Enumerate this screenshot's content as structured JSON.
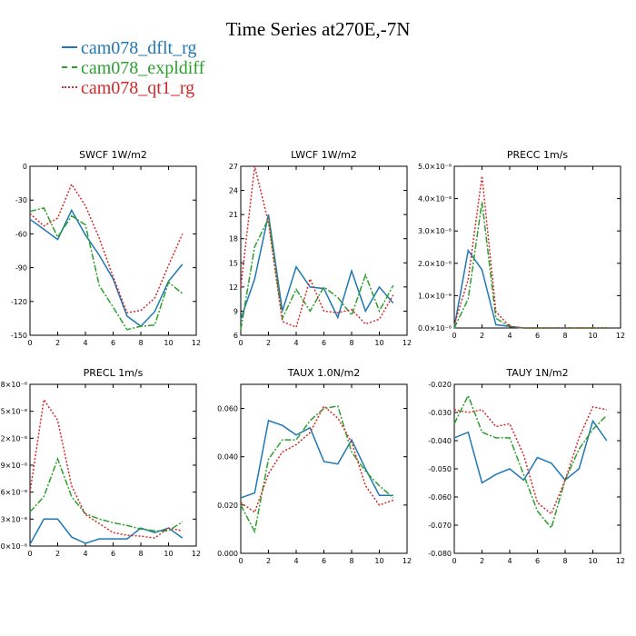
{
  "title": "Time Series at270E,-7N",
  "legend": [
    {
      "label": "cam078_dflt_rg",
      "color": "#1f77b4",
      "dash": "solid"
    },
    {
      "label": "cam078_expldiff",
      "color": "#2ca02c",
      "dash": "dashdot"
    },
    {
      "label": "cam078_qt1_rg",
      "color": "#d62728",
      "dash": "dotted"
    }
  ],
  "chart_data": [
    {
      "type": "line",
      "title": "SWCF   1W/m2",
      "x": [
        0,
        1,
        2,
        3,
        4,
        5,
        6,
        7,
        8,
        9,
        10,
        11
      ],
      "xlim": [
        0,
        12
      ],
      "ylim": [
        -150,
        0
      ],
      "xticks": [
        0,
        2,
        4,
        6,
        8,
        10,
        12
      ],
      "yticks": [
        -150,
        -120,
        -90,
        -60,
        -30,
        0
      ],
      "yticklabels": [
        "-150",
        "-120",
        "-90",
        "-60",
        "-30",
        "0"
      ],
      "series": [
        {
          "name": "cam078_dflt_rg",
          "values": [
            -47,
            -56,
            -65,
            -39,
            -61,
            -79,
            -100,
            -133,
            -142,
            -129,
            -102,
            -87
          ]
        },
        {
          "name": "cam078_expldiff",
          "values": [
            -40,
            -37,
            -63,
            -44,
            -52,
            -106,
            -125,
            -145,
            -142,
            -141,
            -103,
            -113
          ]
        },
        {
          "name": "cam078_qt1_rg",
          "values": [
            -42,
            -53,
            -46,
            -16,
            -35,
            -64,
            -98,
            -130,
            -128,
            -117,
            -88,
            -60
          ]
        }
      ]
    },
    {
      "type": "line",
      "title": "LWCF   1W/m2",
      "x": [
        0,
        1,
        2,
        3,
        4,
        5,
        6,
        7,
        8,
        9,
        10,
        11
      ],
      "xlim": [
        0,
        12
      ],
      "ylim": [
        6,
        27
      ],
      "xticks": [
        0,
        2,
        4,
        6,
        8,
        10,
        12
      ],
      "yticks": [
        6,
        9,
        12,
        15,
        18,
        21,
        24,
        27
      ],
      "yticklabels": [
        "6",
        "9",
        "12",
        "15",
        "18",
        "21",
        "24",
        "27"
      ],
      "series": [
        {
          "name": "cam078_dflt_rg",
          "values": [
            8,
            13,
            21,
            9,
            14.5,
            12,
            11.8,
            8.2,
            14,
            9,
            12,
            10
          ]
        },
        {
          "name": "cam078_expldiff",
          "values": [
            6.7,
            17,
            20.5,
            8.1,
            11.7,
            9,
            12,
            10.7,
            8.5,
            13.5,
            9,
            12.2
          ]
        },
        {
          "name": "cam078_qt1_rg",
          "values": [
            12,
            27,
            20,
            7.7,
            7,
            13,
            9,
            8.8,
            9.2,
            7.4,
            8,
            11
          ]
        }
      ]
    },
    {
      "type": "line",
      "title": "PRECC   1m/s",
      "x": [
        0,
        1,
        2,
        3,
        4,
        5,
        6,
        7,
        8,
        9,
        10,
        11
      ],
      "xlim": [
        0,
        12
      ],
      "ylim": [
        0,
        5e-08
      ],
      "xticks": [
        0,
        2,
        4,
        6,
        8,
        10,
        12
      ],
      "yticks": [
        0,
        1e-08,
        2e-08,
        3e-08,
        4e-08,
        5e-08
      ],
      "yticklabels": [
        "0.0×10⁻⁸",
        "1.0×10⁻⁸",
        "2.0×10⁻⁸",
        "3.0×10⁻⁸",
        "4.0×10⁻⁸",
        "5.0×10⁻⁸"
      ],
      "series": [
        {
          "name": "cam078_dflt_rg",
          "values": [
            2e-10,
            2.4e-08,
            1.8e-08,
            1e-09,
            5e-10,
            0,
            0,
            0,
            0,
            0,
            0,
            0
          ]
        },
        {
          "name": "cam078_expldiff",
          "values": [
            0,
            9e-09,
            3.9e-08,
            3e-09,
            4e-10,
            0,
            0,
            0,
            0,
            0,
            0,
            0
          ]
        },
        {
          "name": "cam078_qt1_rg",
          "values": [
            1e-09,
            1.5e-08,
            4.7e-08,
            5e-09,
            5e-10,
            0,
            0,
            0,
            0,
            0,
            0,
            0
          ]
        }
      ]
    },
    {
      "type": "line",
      "title": "PRECL   1m/s",
      "x": [
        0,
        1,
        2,
        3,
        4,
        5,
        6,
        7,
        8,
        9,
        10,
        11
      ],
      "xlim": [
        0,
        12
      ],
      "ylim": [
        0,
        1.8e-08
      ],
      "xticks": [
        0,
        2,
        4,
        6,
        8,
        10,
        12
      ],
      "yticks": [
        0,
        3e-09,
        6e-09,
        9e-09,
        1.2e-08,
        1.5e-08,
        1.8e-08
      ],
      "yticklabels": [
        "0.0×10⁻⁸",
        "0.3×10⁻⁸",
        "0.6×10⁻⁸",
        "0.9×10⁻⁸",
        "1.2×10⁻⁸",
        "1.5×10⁻⁸",
        "1.8×10⁻⁸"
      ],
      "series": [
        {
          "name": "cam078_dflt_rg",
          "values": [
            2e-10,
            3e-09,
            3e-09,
            1e-09,
            3e-10,
            8e-10,
            8e-10,
            8e-10,
            2e-09,
            1.5e-09,
            2e-09,
            9e-10
          ]
        },
        {
          "name": "cam078_expldiff",
          "values": [
            3.8e-09,
            5.5e-09,
            9.7e-09,
            5.5e-09,
            3.6e-09,
            3e-09,
            2.6e-09,
            2.3e-09,
            1.9e-09,
            1.7e-09,
            1.7e-09,
            2.7e-09
          ]
        },
        {
          "name": "cam078_qt1_rg",
          "values": [
            6e-09,
            1.63e-08,
            1.4e-08,
            6.7e-09,
            3.5e-09,
            2.5e-09,
            1.5e-09,
            1.2e-09,
            1.1e-09,
            9e-10,
            2e-09,
            1.7e-09
          ]
        }
      ]
    },
    {
      "type": "line",
      "title": "TAUX   1.0N/m2",
      "x": [
        0,
        1,
        2,
        3,
        4,
        5,
        6,
        7,
        8,
        9,
        10,
        11
      ],
      "xlim": [
        0,
        12
      ],
      "ylim": [
        0,
        0.07
      ],
      "xticks": [
        0,
        2,
        4,
        6,
        8,
        10,
        12
      ],
      "yticks": [
        0,
        0.02,
        0.04,
        0.06
      ],
      "yticklabels": [
        "0.000",
        "0.020",
        "0.040",
        "0.060"
      ],
      "series": [
        {
          "name": "cam078_dflt_rg",
          "values": [
            0.023,
            0.025,
            0.055,
            0.053,
            0.049,
            0.052,
            0.038,
            0.037,
            0.047,
            0.035,
            0.024,
            0.024
          ]
        },
        {
          "name": "cam078_expldiff",
          "values": [
            0.02,
            0.009,
            0.039,
            0.047,
            0.047,
            0.055,
            0.06,
            0.061,
            0.042,
            0.034,
            0.028,
            0.023
          ]
        },
        {
          "name": "cam078_qt1_rg",
          "values": [
            0.021,
            0.017,
            0.033,
            0.042,
            0.045,
            0.05,
            0.061,
            0.056,
            0.046,
            0.028,
            0.02,
            0.022
          ]
        }
      ]
    },
    {
      "type": "line",
      "title": "TAUY   1N/m2",
      "x": [
        0,
        1,
        2,
        3,
        4,
        5,
        6,
        7,
        8,
        9,
        10,
        11
      ],
      "xlim": [
        0,
        12
      ],
      "ylim": [
        -0.08,
        -0.02
      ],
      "xticks": [
        0,
        2,
        4,
        6,
        8,
        10,
        12
      ],
      "yticks": [
        -0.08,
        -0.07,
        -0.06,
        -0.05,
        -0.04,
        -0.03,
        -0.02
      ],
      "yticklabels": [
        "-0.080",
        "-0.070",
        "-0.060",
        "-0.050",
        "-0.040",
        "-0.030",
        "-0.020"
      ],
      "series": [
        {
          "name": "cam078_dflt_rg",
          "values": [
            -0.039,
            -0.037,
            -0.055,
            -0.052,
            -0.05,
            -0.054,
            -0.046,
            -0.048,
            -0.054,
            -0.05,
            -0.033,
            -0.04
          ]
        },
        {
          "name": "cam078_expldiff",
          "values": [
            -0.034,
            -0.024,
            -0.037,
            -0.039,
            -0.039,
            -0.052,
            -0.065,
            -0.071,
            -0.054,
            -0.043,
            -0.036,
            -0.031
          ]
        },
        {
          "name": "cam078_qt1_rg",
          "values": [
            -0.029,
            -0.03,
            -0.029,
            -0.035,
            -0.034,
            -0.045,
            -0.062,
            -0.066,
            -0.054,
            -0.039,
            -0.028,
            -0.029
          ]
        }
      ]
    }
  ]
}
